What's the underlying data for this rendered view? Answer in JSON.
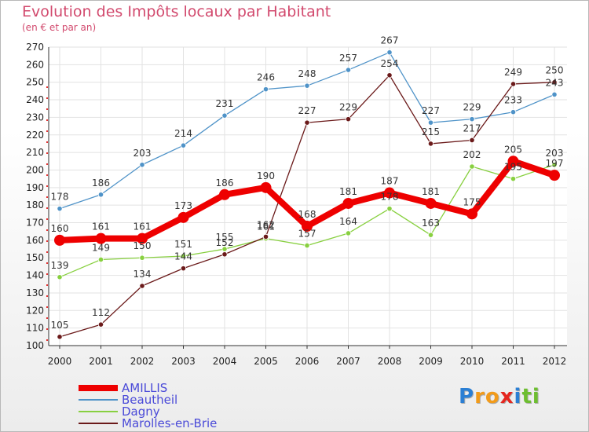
{
  "chart_data": {
    "type": "line",
    "title": "Evolution des Impôts locaux par Habitant",
    "subtitle": "(en € et par an)",
    "x": [
      "2000",
      "2001",
      "2002",
      "2003",
      "2004",
      "2005",
      "2006",
      "2007",
      "2008",
      "2009",
      "2010",
      "2011",
      "2012"
    ],
    "ylim": [
      100,
      270
    ],
    "yticks": [
      100,
      110,
      120,
      130,
      140,
      150,
      160,
      170,
      180,
      190,
      200,
      210,
      220,
      230,
      240,
      250,
      260,
      270
    ],
    "series": [
      {
        "name": "AMILLIS",
        "color": "#ee0000",
        "values": [
          160,
          161,
          161,
          173,
          186,
          190,
          168,
          181,
          187,
          181,
          175,
          205,
          197
        ]
      },
      {
        "name": "Beautheil",
        "color": "#4f93c8",
        "values": [
          178,
          186,
          203,
          214,
          231,
          246,
          248,
          257,
          267,
          227,
          229,
          233,
          243
        ]
      },
      {
        "name": "Dagny",
        "color": "#88d040",
        "values": [
          139,
          149,
          150,
          151,
          155,
          161,
          157,
          164,
          178,
          163,
          202,
          195,
          203
        ]
      },
      {
        "name": "Marolles-en-Brie",
        "color": "#6b1a1a",
        "values": [
          105,
          112,
          134,
          144,
          152,
          162,
          227,
          229,
          254,
          215,
          217,
          249,
          250
        ]
      }
    ]
  },
  "brand": {
    "letters": [
      {
        "ch": "P",
        "color": "#2b7fd4"
      },
      {
        "ch": "r",
        "color": "#f29b1a"
      },
      {
        "ch": "o",
        "color": "#f29b1a"
      },
      {
        "ch": "x",
        "color": "#e5261f"
      },
      {
        "ch": "i",
        "color": "#2b7fd4"
      },
      {
        "ch": "t",
        "color": "#6dbe30"
      },
      {
        "ch": "i",
        "color": "#6dbe30"
      }
    ]
  }
}
